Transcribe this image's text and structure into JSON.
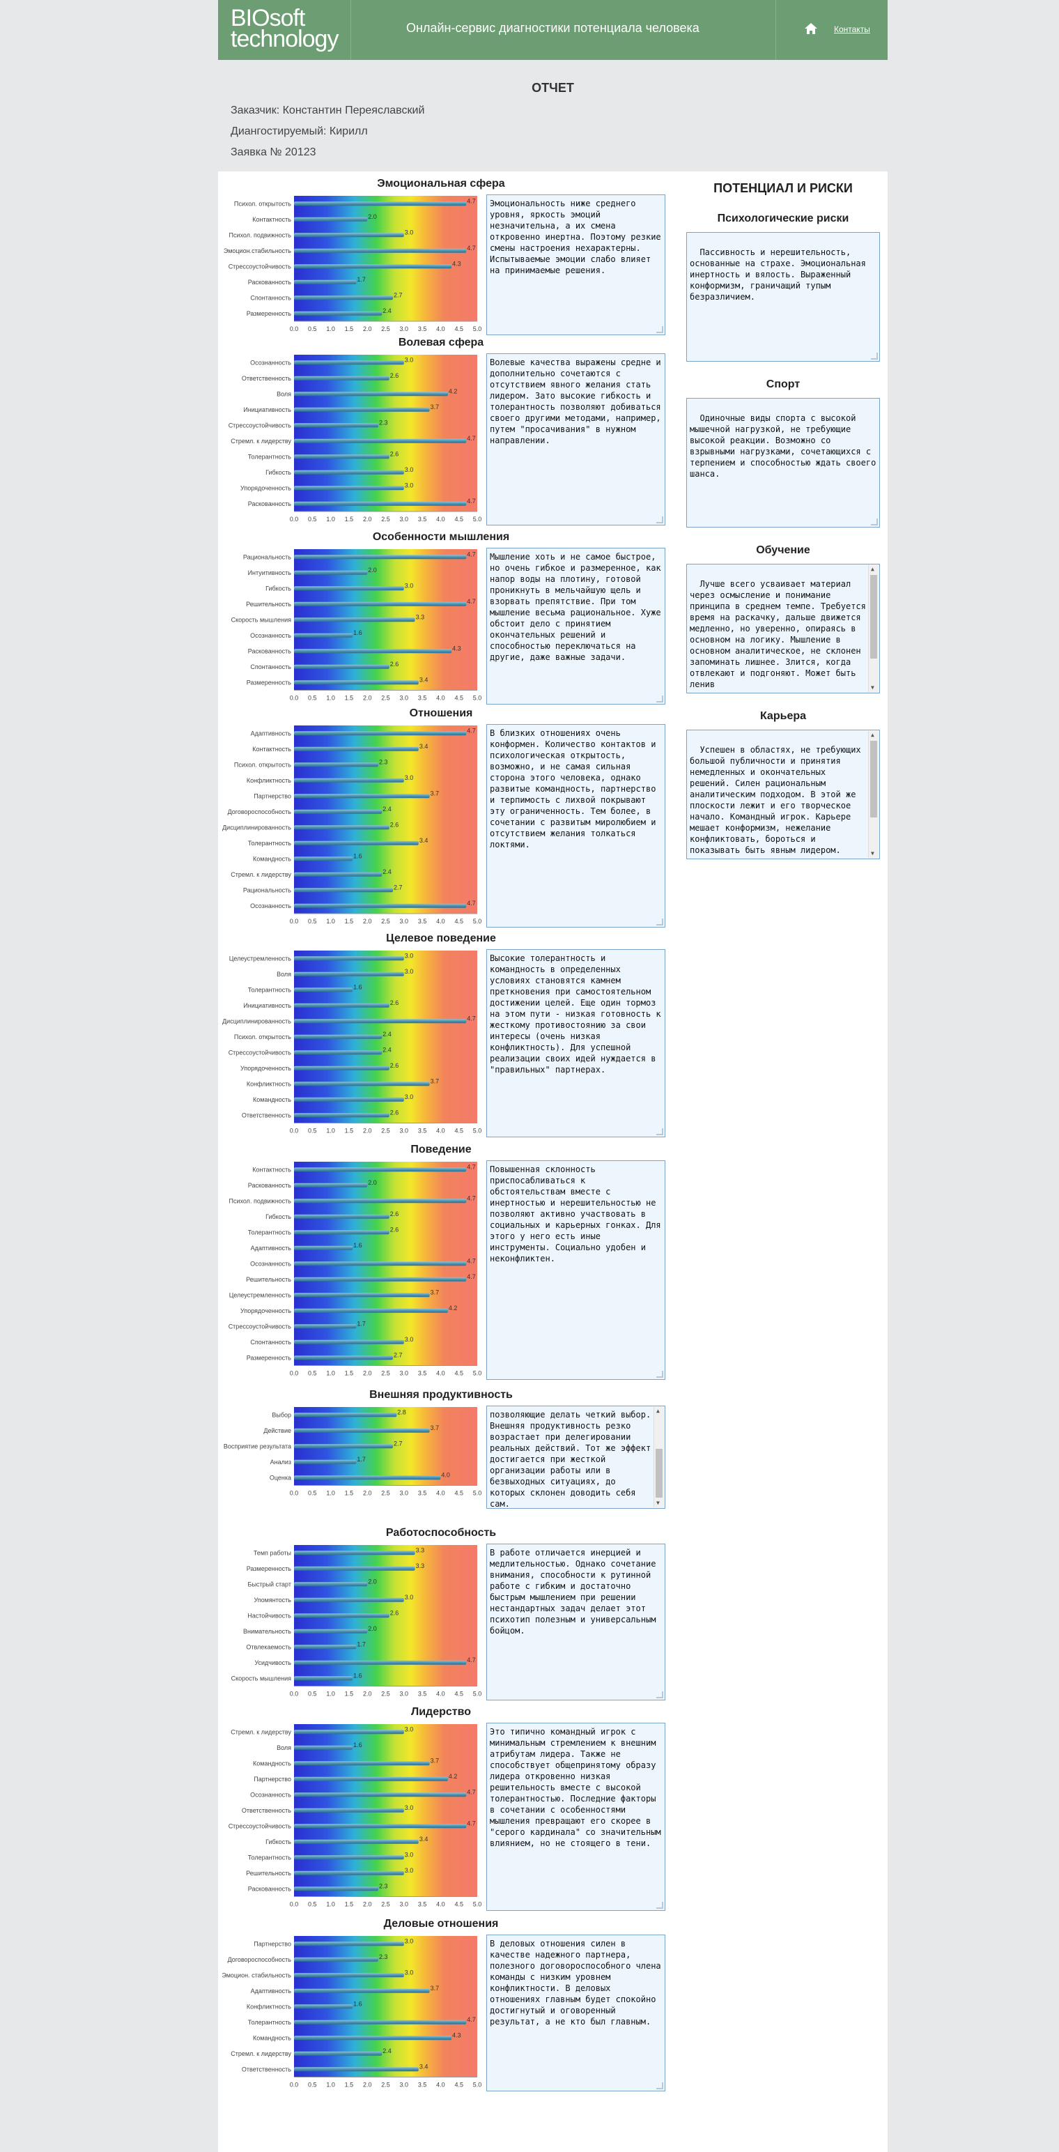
{
  "header": {
    "logo_line1": "BIOsoft",
    "logo_line2": "technology",
    "title": "Онлайн-сервис диагностики потенциала человека",
    "home_icon": "home-icon",
    "contacts_label": "Контакты"
  },
  "report": {
    "title": "ОТЧЕТ",
    "customer": "Заказчик: Константин Переяславский",
    "subject": "Диангостируемый: Кирилл",
    "order": "Заявка №  20123"
  },
  "axis_ticks": [
    "0.0",
    "0.5",
    "1.0",
    "1.5",
    "2.0",
    "2.5",
    "3.0",
    "3.5",
    "4.0",
    "4.5",
    "5.0"
  ],
  "right": {
    "title": "ПОТЕНЦИАЛ И РИСКИ",
    "blocks": [
      {
        "title": "Психологические риски",
        "text": "Пассивность и нерешительность, основанные на страхе. Эмоциональная инертность и вялость. Выраженный конформизм, граничащий тупым безразличием."
      },
      {
        "title": "Спорт",
        "text": "Одиночные виды спорта с высокой мышечной нагрузкой, не требующие высокой реакции. Возможно со взрывными нагрузками, сочетающихся с терпением и способностью ждать своего шанса."
      },
      {
        "title": "Обучение",
        "text": "Лучше всего усваивает материал через осмысление и понимание принципа в среднем темпе. Требуется время на раскачку, дальше движется медленно, но уверенно, опираясь в основном на логику. Мышление в основном аналитическое, не склонен запоминать лишнее. Злится, когда отвлекают и подгоняют. Может быть ленив"
      },
      {
        "title": "Карьера",
        "text": "Успешен в областях, не требующих большой публичности и принятия немедленных и окончательных решений. Силен рациональным аналитическим подходом. В этой же плоскости лежит и его творческое начало. Командный игрок. Карьере мешает конформизм, нежелание конфликтовать, бороться и показывать быть явным лидером."
      }
    ]
  },
  "chart_data": [
    {
      "type": "bar",
      "title": "Эмоциональная сфера",
      "xlim": [
        0,
        5
      ],
      "categories": [
        "Психол. открытость",
        "Контактность",
        "Психол. подвижность",
        "Эмоцион.стабильность",
        "Стрессоустойчивость",
        "Раскованность",
        "Спонтанность",
        "Размеренность"
      ],
      "values": [
        4.7,
        2.0,
        3.0,
        4.7,
        4.3,
        1.7,
        2.7,
        2.4
      ],
      "text": "Эмоциональность ниже среднего уровня, яркость эмоций незначительна, а их смена откровенно инертна. Поэтому резкие смены настроения нехарактерны. Испытываемые эмоции слабо влияет на принимаемые решения."
    },
    {
      "type": "bar",
      "title": "Волевая сфера",
      "xlim": [
        0,
        5
      ],
      "categories": [
        "Осознанность",
        "Ответственность",
        "Воля",
        "Инициативность",
        "Стрессоустойчивость",
        "Стремл. к лидерству",
        "Толерантность",
        "Гибкость",
        "Упорядоченность",
        "Раскованность"
      ],
      "values": [
        3.0,
        2.6,
        4.2,
        3.7,
        2.3,
        4.7,
        2.6,
        3.0,
        3.0,
        4.7
      ],
      "text": "Волевые качества выражены средне и дополнительно сочетаются с отсутствием явного желания стать лидером. Зато высокие гибкость и толерантность позволяют добиваться своего другими методами, например, путем \"просачивания\" в нужном направлении."
    },
    {
      "type": "bar",
      "title": "Особенности мышления",
      "xlim": [
        0,
        5
      ],
      "categories": [
        "Рациональность",
        "Интуитивность",
        "Гибкость",
        "Решительность",
        "Скорость мышления",
        "Осознанность",
        "Раскованность",
        "Спонтанность",
        "Размеренность"
      ],
      "values": [
        4.7,
        2.0,
        3.0,
        4.7,
        3.3,
        1.6,
        4.3,
        2.6,
        3.4
      ],
      "text": "Мышление хоть и не самое быстрое, но очень гибкое и размеренное, как напор воды на плотину, готовой проникнуть в мельчайшую щель и взорвать препятствие. При том мышление весьма рациональное. Хуже обстоит дело с принятием окончательных решений и способностью переключаться на другие, даже важные задачи."
    },
    {
      "type": "bar",
      "title": "Отношения",
      "xlim": [
        0,
        5
      ],
      "categories": [
        "Адаптивность",
        "Контактность",
        "Психол. открытость",
        "Конфликтность",
        "Партнерство",
        "Договороспособность",
        "Дисциплинированность",
        "Толерантность",
        "Командность",
        "Стремл. к лидерству",
        "Рациональность",
        "Осознанность"
      ],
      "values": [
        4.7,
        3.4,
        2.3,
        3.0,
        3.7,
        2.4,
        2.6,
        3.4,
        1.6,
        2.4,
        2.7,
        4.7
      ],
      "text": "В близких отношениях очень конформен. Количество контактов и психологическая открытость, возможно, и не самая сильная сторона этого человека, однако развитые командность, партнерство и терпимость с лихвой покрывают эту ограниченность. Тем более, в сочетании с развитым миролюбием и отсутствием желания толкаться локтями."
    },
    {
      "type": "bar",
      "title": "Целевое поведение",
      "xlim": [
        0,
        5
      ],
      "categories": [
        "Целеустремленность",
        "Воля",
        "Толерантность",
        "Инициативность",
        "Дисциплинированность",
        "Психол. открытость",
        "Стрессоустойчивость",
        "Упорядоченность",
        "Конфликтность",
        "Командность",
        "Ответственность"
      ],
      "values": [
        3.0,
        3.0,
        1.6,
        2.6,
        4.7,
        2.4,
        2.4,
        2.6,
        3.7,
        3.0,
        2.6
      ],
      "text": "Высокие толерантность и командность в определенных условиях становятся камнем преткновения при самостоятельном достижении целей. Еще один тормоз на этом пути - низкая готовность к жесткому противостоянию за свои интересы (очень низкая конфликтность). Для успешной реализации своих идей нуждается в \"правильных\" партнерах."
    },
    {
      "type": "bar",
      "title": "Поведение",
      "xlim": [
        0,
        5
      ],
      "categories": [
        "Контактность",
        "Раскованность",
        "Психол. подвижность",
        "Гибкость",
        "Толерантность",
        "Адаптивность",
        "Осознанность",
        "Решительность",
        "Целеустремленность",
        "Упорядоченность",
        "Стрессоустойчивость",
        "Спонтанность",
        "Размеренность"
      ],
      "values": [
        4.7,
        2.0,
        4.7,
        2.6,
        2.6,
        1.6,
        4.7,
        4.7,
        3.7,
        4.2,
        1.7,
        3.0,
        2.7
      ],
      "text": "Повышенная склонность приспосабливаться к обстоятельствам вместе с инертностью и нерешительностью не позволяют активно участвовать в социальных и карьерных гонках. Для этого у него есть иные инструменты. Социально удобен и неконфликтен."
    },
    {
      "type": "bar",
      "title": "Внешняя продуктивность",
      "xlim": [
        0,
        5
      ],
      "categories": [
        "Выбор",
        "Действие",
        "Восприятие результата",
        "Анализ",
        "Оценка"
      ],
      "values": [
        2.8,
        3.7,
        2.7,
        1.7,
        4.0
      ],
      "text": "позволяющие делать четкий выбор. Внешняя продуктивность резко возрастает при делегировании реальных действий. Тот же эффект достигается при жесткой организации работы или в безвыходных ситуациях, до которых склонен доводить себя сам."
    },
    {
      "type": "bar",
      "title": "Работоспособность",
      "xlim": [
        0,
        5
      ],
      "categories": [
        "Темп работы",
        "Размеренность",
        "Быстрый старт",
        "Упомянтость",
        "Настойчивость",
        "Внимательность",
        "Отвлекаемость",
        "Усидчивость",
        "Скорость мышления"
      ],
      "values": [
        3.3,
        3.3,
        2.0,
        3.0,
        2.6,
        2.0,
        1.7,
        4.7,
        1.6
      ],
      "text": "В работе отличается инерцией и медлительностью. Однако сочетание внимания, способности к рутинной работе с гибким и достаточно быстрым мышлением при решении нестандартных задач делает этот психотип полезным и универсальным бойцом."
    },
    {
      "type": "bar",
      "title": "Лидерство",
      "xlim": [
        0,
        5
      ],
      "categories": [
        "Стремл. к лидерству",
        "Воля",
        "Командность",
        "Партнерство",
        "Осознанность",
        "Ответственность",
        "Стрессоустойчивость",
        "Гибкость",
        "Толерантность",
        "Решительность",
        "Раскованность"
      ],
      "values": [
        3.0,
        1.6,
        3.7,
        4.2,
        4.7,
        3.0,
        4.7,
        3.4,
        3.0,
        3.0,
        2.3
      ],
      "text": "Это типично командный игрок с минимальным стремлением к внешним атрибутам лидера. Также не способствует общепринятому образу лидера откровенно низкая решительность вместе с высокой толерантностью. Последние факторы в сочетании с особенностями мышления превращают его скорее в \"серого кардинала\" со значительным влиянием, но не стоящего в тени."
    },
    {
      "type": "bar",
      "title": "Деловые отношения",
      "xlim": [
        0,
        5
      ],
      "categories": [
        "Партнерство",
        "Договороспособность",
        "Эмоцион. стабильность",
        "Адаптивность",
        "Конфликтность",
        "Толерантность",
        "Командность",
        "Стремл. к лидерству",
        "Ответственность"
      ],
      "values": [
        3.0,
        2.3,
        3.0,
        3.7,
        1.6,
        4.7,
        4.3,
        2.4,
        3.4
      ],
      "text": "В деловых отношения силен в качестве надежного партнера, полезного договороспособного члена команды с низким уровнем конфликтности. В деловых отношениях главным будет спокойно достигнутый и оговоренный результат, а не кто был главным."
    }
  ]
}
